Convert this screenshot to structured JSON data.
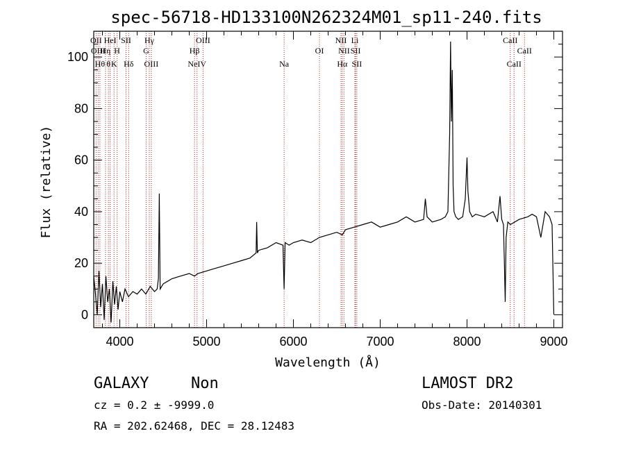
{
  "chart_data": {
    "type": "line",
    "title": "spec-56718-HD133100N262324M01_sp11-240.fits",
    "xlabel": "Wavelength (Å)",
    "ylabel": "Flux (relative)",
    "xlim": [
      3700,
      9100
    ],
    "ylim": [
      -5,
      110
    ],
    "x_ticks": [
      4000,
      5000,
      6000,
      7000,
      8000,
      9000
    ],
    "y_ticks": [
      0,
      20,
      40,
      60,
      80,
      100
    ],
    "line_color": "#000000",
    "marker_color": "#b22222",
    "series": [
      {
        "x": [
          3700,
          3720,
          3740,
          3760,
          3780,
          3800,
          3820,
          3840,
          3860,
          3880,
          3900,
          3920,
          3940,
          3960,
          3980,
          4000,
          4030,
          4060,
          4100,
          4150,
          4200,
          4250,
          4300,
          4350,
          4400,
          4430,
          4445,
          4455,
          4465,
          4500,
          4550,
          4600,
          4700,
          4800,
          4861,
          4900,
          5000,
          5100,
          5200,
          5300,
          5400,
          5500,
          5570,
          5577,
          5585,
          5600,
          5700,
          5800,
          5880,
          5893,
          5905,
          5950,
          6000,
          6100,
          6200,
          6300,
          6400,
          6500,
          6563,
          6600,
          6700,
          6800,
          6900,
          7000,
          7100,
          7200,
          7300,
          7400,
          7500,
          7520,
          7540,
          7600,
          7700,
          7750,
          7780,
          7800,
          7810,
          7820,
          7830,
          7840,
          7850,
          7870,
          7900,
          7950,
          7980,
          8000,
          8010,
          8030,
          8060,
          8100,
          8200,
          8300,
          8350,
          8380,
          8400,
          8420,
          8430,
          8440,
          8450,
          8470,
          8500,
          8600,
          8700,
          8750,
          8800,
          8850,
          8900,
          8950,
          8980,
          9000
        ],
        "y": [
          15,
          8,
          0,
          17,
          3,
          12,
          -2,
          15,
          5,
          10,
          -3,
          13,
          4,
          11,
          2,
          9,
          5,
          10,
          7,
          9,
          8,
          10,
          8,
          11,
          9,
          10,
          14,
          47,
          10,
          12,
          13,
          14,
          15,
          16,
          15,
          16,
          17,
          18,
          19,
          20,
          21,
          22,
          24,
          36,
          24,
          25,
          26,
          28,
          27,
          10,
          28,
          27,
          28,
          29,
          28,
          30,
          31,
          32,
          31,
          33,
          34,
          35,
          36,
          34,
          35,
          36,
          38,
          36,
          37,
          45,
          38,
          36,
          37,
          38,
          40,
          70,
          106,
          75,
          95,
          50,
          40,
          38,
          37,
          38,
          45,
          61,
          48,
          40,
          38,
          39,
          38,
          40,
          36,
          46,
          37,
          35,
          20,
          5,
          30,
          36,
          35,
          37,
          38,
          39,
          38,
          30,
          40,
          38,
          35,
          0
        ]
      }
    ],
    "line_markers": [
      {
        "x": 3727,
        "row": 1,
        "label": "OII"
      },
      {
        "x": 3750,
        "row": 2,
        "label": "OIII"
      },
      {
        "x": 3771,
        "row": 3,
        "label": "Hθ"
      },
      {
        "x": 3835,
        "row": 2,
        "label": "Hη"
      },
      {
        "x": 3869,
        "row": 3,
        "label": "θ"
      },
      {
        "x": 3889,
        "row": 1,
        "label": "HeI"
      },
      {
        "x": 3934,
        "row": 3,
        "label": "K"
      },
      {
        "x": 3969,
        "row": 2,
        "label": "H"
      },
      {
        "x": 4072,
        "row": 1,
        "label": "SII"
      },
      {
        "x": 4102,
        "row": 3,
        "label": "Hδ"
      },
      {
        "x": 4304,
        "row": 2,
        "label": "G"
      },
      {
        "x": 4340,
        "row": 1,
        "label": "Hγ"
      },
      {
        "x": 4363,
        "row": 3,
        "label": "OIII"
      },
      {
        "x": 4861,
        "row": 2,
        "label": "Hβ"
      },
      {
        "x": 4890,
        "row": 3,
        "label": "NeIV"
      },
      {
        "x": 4959,
        "row": 1,
        "label": "OIII"
      },
      {
        "x": 5893,
        "row": 3,
        "label": "Na"
      },
      {
        "x": 6300,
        "row": 2,
        "label": "OI"
      },
      {
        "x": 6548,
        "row": 1,
        "label": "NII"
      },
      {
        "x": 6563,
        "row": 3,
        "label": "Hα"
      },
      {
        "x": 6583,
        "row": 2,
        "label": "NII"
      },
      {
        "x": 6708,
        "row": 1,
        "label": "Li"
      },
      {
        "x": 6716,
        "row": 2,
        "label": "SII"
      },
      {
        "x": 6731,
        "row": 3,
        "label": "SII"
      },
      {
        "x": 8498,
        "row": 1,
        "label": "CaII"
      },
      {
        "x": 8542,
        "row": 3,
        "label": "CaII"
      },
      {
        "x": 8662,
        "row": 2,
        "label": "CaII"
      }
    ]
  },
  "info": {
    "class_label": "GALAXY",
    "subclass_label": "Non",
    "survey_label": "LAMOST DR2",
    "cz_text": "cz = 0.2 ± -9999.0",
    "obs_date_text": "Obs-Date: 20140301",
    "radec_text": "RA = 202.62468, DEC =  28.12483"
  }
}
